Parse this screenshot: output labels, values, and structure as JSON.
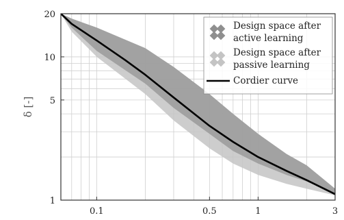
{
  "chart_data": {
    "type": "area",
    "title": "",
    "xlabel": "",
    "ylabel": "δ [-]",
    "xscale": "log",
    "yscale": "log",
    "xlim": [
      0.06,
      3
    ],
    "ylim": [
      1,
      20
    ],
    "grid": true,
    "legend_position": "top-right",
    "x_ticks": [
      {
        "value": 0.1,
        "label": "0.1"
      },
      {
        "value": 0.5,
        "label": "0.5"
      },
      {
        "value": 1,
        "label": "1"
      },
      {
        "value": 3,
        "label": "3"
      }
    ],
    "y_ticks": [
      {
        "value": 1,
        "label": "1"
      },
      {
        "value": 5,
        "label": "5"
      },
      {
        "value": 10,
        "label": "10"
      },
      {
        "value": 20,
        "label": "20"
      }
    ],
    "series": [
      {
        "name": "Design space after active learning",
        "kind": "band",
        "color": "#9a9a9a",
        "x": [
          0.06,
          0.07,
          0.1,
          0.2,
          0.3,
          0.5,
          0.7,
          1.0,
          1.5,
          2.0,
          3.0
        ],
        "upper": [
          20,
          18.5,
          16,
          11.5,
          8.5,
          5.5,
          4.0,
          2.9,
          2.1,
          1.75,
          1.2
        ],
        "lower": [
          20,
          16.0,
          11.0,
          6.5,
          4.4,
          2.9,
          2.2,
          1.8,
          1.5,
          1.35,
          1.1
        ]
      },
      {
        "name": "Design space after passive learning",
        "kind": "band",
        "color": "#c4c4c4",
        "x": [
          0.06,
          0.07,
          0.1,
          0.2,
          0.3,
          0.5,
          0.7,
          1.0,
          1.5,
          2.0,
          3.0
        ],
        "upper": [
          20,
          18.5,
          16,
          11.5,
          8.5,
          5.5,
          4.0,
          2.9,
          2.1,
          1.75,
          1.2
        ],
        "lower": [
          20,
          15.0,
          10.0,
          5.5,
          3.6,
          2.3,
          1.8,
          1.5,
          1.3,
          1.2,
          1.08
        ]
      },
      {
        "name": "Cordier curve",
        "kind": "line",
        "color": "#000000",
        "x": [
          0.06,
          0.07,
          0.1,
          0.15,
          0.2,
          0.3,
          0.5,
          0.7,
          1.0,
          1.5,
          2.0,
          3.0
        ],
        "values": [
          20,
          17.0,
          13.0,
          9.5,
          7.5,
          5.2,
          3.3,
          2.55,
          2.0,
          1.6,
          1.38,
          1.1
        ]
      }
    ],
    "legend": [
      {
        "lines": [
          "Design space after",
          "active learning"
        ],
        "swatch": "band-active"
      },
      {
        "lines": [
          "Design space after",
          "passive learning"
        ],
        "swatch": "band-passive"
      },
      {
        "lines": [
          "Cordier curve"
        ],
        "swatch": "line"
      }
    ]
  }
}
